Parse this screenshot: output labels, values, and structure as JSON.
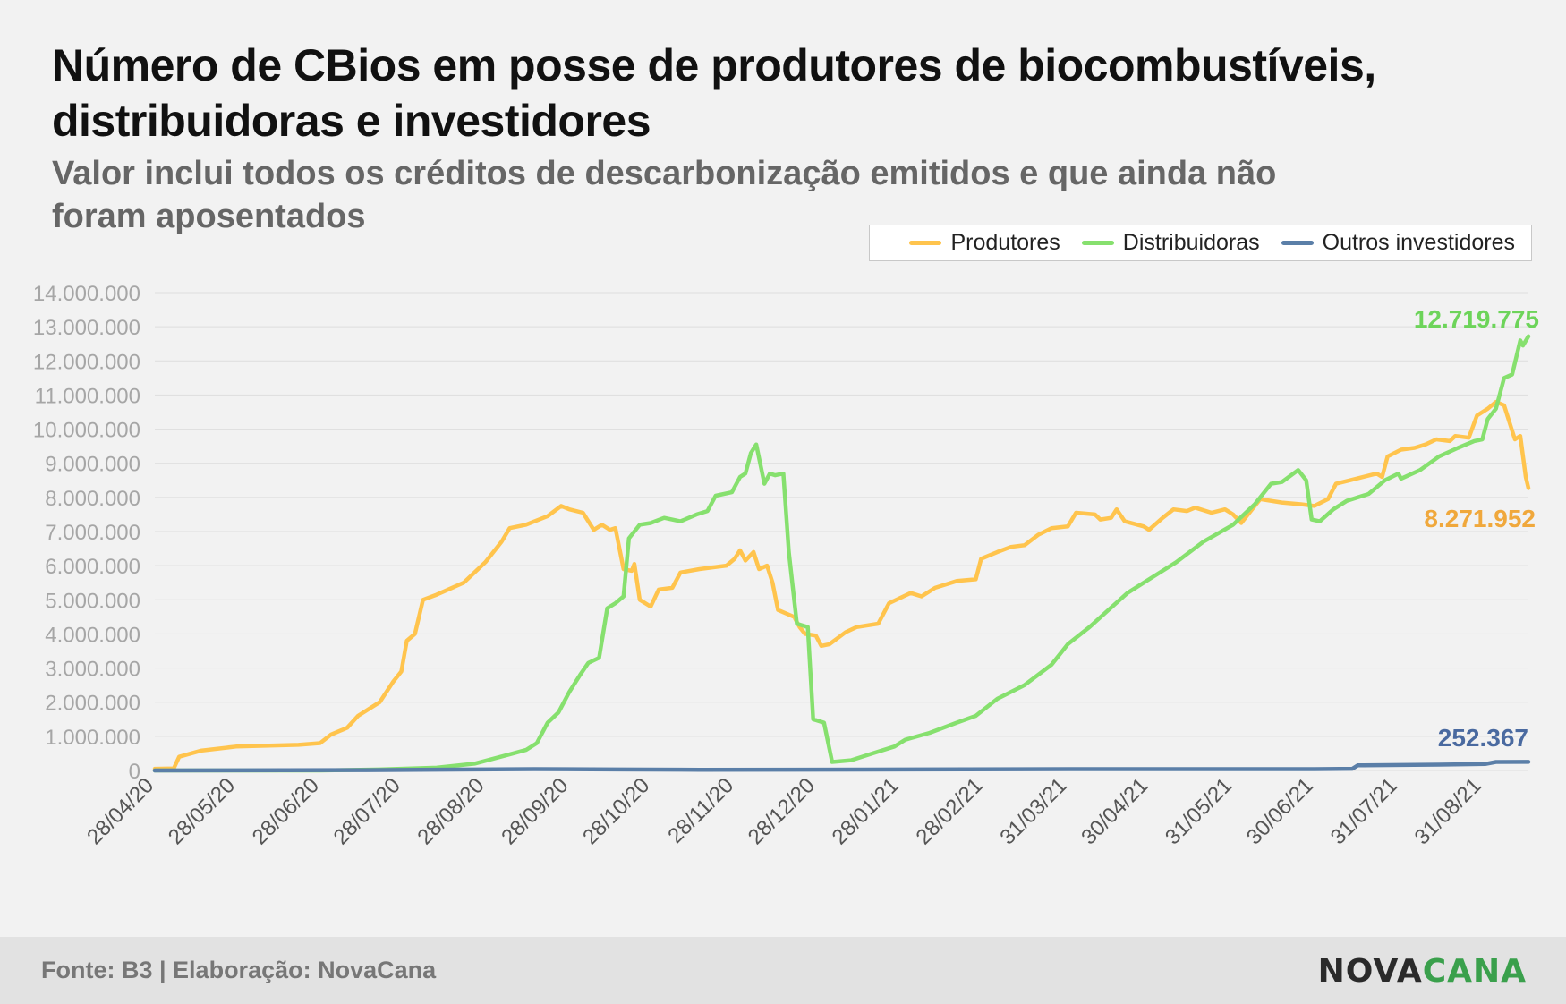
{
  "title": "Número de CBios em posse de produtores de biocombustíveis, distribuidoras e investidores",
  "subtitle": "Valor inclui todos os créditos de descarbonização emitidos e que ainda não foram aposentados",
  "footer": {
    "source": "Fonte: B3 | Elaboração: NovaCana",
    "logo_part1": "NOVA",
    "logo_part2": "CANA"
  },
  "chart_data": {
    "type": "line",
    "ylim": [
      0,
      14000000
    ],
    "y_ticks": [
      0,
      1000000,
      2000000,
      3000000,
      4000000,
      5000000,
      6000000,
      7000000,
      8000000,
      9000000,
      10000000,
      11000000,
      12000000,
      13000000,
      14000000
    ],
    "y_tick_labels": [
      "0",
      "1.000.000",
      "2.000.000",
      "3.000.000",
      "4.000.000",
      "5.000.000",
      "6.000.000",
      "7.000.000",
      "8.000.000",
      "9.000.000",
      "10.000.000",
      "11.000.000",
      "12.000.000",
      "13.000.000",
      "14.000.000"
    ],
    "x_range": [
      "2020-04-28",
      "2021-09-17"
    ],
    "x_ticks": [
      "2020-04-28",
      "2020-05-28",
      "2020-06-28",
      "2020-07-28",
      "2020-08-28",
      "2020-09-28",
      "2020-10-28",
      "2020-11-28",
      "2020-12-28",
      "2021-01-28",
      "2021-02-28",
      "2021-03-31",
      "2021-04-30",
      "2021-05-31",
      "2021-06-30",
      "2021-07-31",
      "2021-08-31"
    ],
    "x_tick_labels": [
      "28/04/20",
      "28/05/20",
      "28/06/20",
      "28/07/20",
      "28/08/20",
      "28/09/20",
      "28/10/20",
      "28/11/20",
      "28/12/20",
      "28/01/21",
      "28/02/21",
      "31/03/21",
      "30/04/21",
      "31/05/21",
      "30/06/21",
      "31/07/21",
      "31/08/21"
    ],
    "grid": true,
    "legend_position": "top-right",
    "series": [
      {
        "name": "Produtores",
        "color": "#ffc44d",
        "end_label": "8.271.952",
        "label_color": "#f0a83c",
        "points": [
          [
            "2020-04-28",
            50000
          ],
          [
            "2020-05-05",
            60000
          ],
          [
            "2020-05-07",
            400000
          ],
          [
            "2020-05-15",
            580000
          ],
          [
            "2020-05-28",
            700000
          ],
          [
            "2020-06-20",
            750000
          ],
          [
            "2020-06-28",
            800000
          ],
          [
            "2020-07-02",
            1050000
          ],
          [
            "2020-07-08",
            1250000
          ],
          [
            "2020-07-12",
            1600000
          ],
          [
            "2020-07-20",
            2000000
          ],
          [
            "2020-07-25",
            2600000
          ],
          [
            "2020-07-28",
            2900000
          ],
          [
            "2020-07-30",
            3800000
          ],
          [
            "2020-08-02",
            4000000
          ],
          [
            "2020-08-05",
            5000000
          ],
          [
            "2020-08-10",
            5150000
          ],
          [
            "2020-08-20",
            5500000
          ],
          [
            "2020-08-28",
            6100000
          ],
          [
            "2020-09-03",
            6700000
          ],
          [
            "2020-09-06",
            7100000
          ],
          [
            "2020-09-12",
            7200000
          ],
          [
            "2020-09-20",
            7450000
          ],
          [
            "2020-09-25",
            7750000
          ],
          [
            "2020-09-28",
            7650000
          ],
          [
            "2020-10-03",
            7550000
          ],
          [
            "2020-10-07",
            7050000
          ],
          [
            "2020-10-10",
            7200000
          ],
          [
            "2020-10-13",
            7050000
          ],
          [
            "2020-10-15",
            7100000
          ],
          [
            "2020-10-18",
            5900000
          ],
          [
            "2020-10-21",
            5850000
          ],
          [
            "2020-10-22",
            6050000
          ],
          [
            "2020-10-24",
            5000000
          ],
          [
            "2020-10-28",
            4800000
          ],
          [
            "2020-10-31",
            5300000
          ],
          [
            "2020-11-05",
            5350000
          ],
          [
            "2020-11-08",
            5800000
          ],
          [
            "2020-11-15",
            5900000
          ],
          [
            "2020-11-25",
            6000000
          ],
          [
            "2020-11-28",
            6200000
          ],
          [
            "2020-11-30",
            6450000
          ],
          [
            "2020-12-02",
            6150000
          ],
          [
            "2020-12-05",
            6400000
          ],
          [
            "2020-12-07",
            5900000
          ],
          [
            "2020-12-10",
            6000000
          ],
          [
            "2020-12-12",
            5500000
          ],
          [
            "2020-12-14",
            4700000
          ],
          [
            "2020-12-20",
            4500000
          ],
          [
            "2020-12-22",
            4200000
          ],
          [
            "2020-12-24",
            4000000
          ],
          [
            "2020-12-28",
            3950000
          ],
          [
            "2020-12-30",
            3650000
          ],
          [
            "2021-01-02",
            3700000
          ],
          [
            "2021-01-08",
            4050000
          ],
          [
            "2021-01-12",
            4200000
          ],
          [
            "2021-01-20",
            4300000
          ],
          [
            "2021-01-24",
            4900000
          ],
          [
            "2021-01-28",
            5050000
          ],
          [
            "2021-02-01",
            5200000
          ],
          [
            "2021-02-05",
            5100000
          ],
          [
            "2021-02-10",
            5350000
          ],
          [
            "2021-02-18",
            5550000
          ],
          [
            "2021-02-25",
            5600000
          ],
          [
            "2021-02-27",
            6200000
          ],
          [
            "2021-03-05",
            6400000
          ],
          [
            "2021-03-10",
            6550000
          ],
          [
            "2021-03-15",
            6600000
          ],
          [
            "2021-03-20",
            6900000
          ],
          [
            "2021-03-25",
            7100000
          ],
          [
            "2021-03-31",
            7150000
          ],
          [
            "2021-04-03",
            7550000
          ],
          [
            "2021-04-10",
            7500000
          ],
          [
            "2021-04-12",
            7350000
          ],
          [
            "2021-04-16",
            7400000
          ],
          [
            "2021-04-18",
            7650000
          ],
          [
            "2021-04-21",
            7300000
          ],
          [
            "2021-04-28",
            7150000
          ],
          [
            "2021-04-30",
            7050000
          ],
          [
            "2021-05-05",
            7400000
          ],
          [
            "2021-05-09",
            7650000
          ],
          [
            "2021-05-14",
            7600000
          ],
          [
            "2021-05-17",
            7700000
          ],
          [
            "2021-05-23",
            7550000
          ],
          [
            "2021-05-28",
            7650000
          ],
          [
            "2021-05-31",
            7500000
          ],
          [
            "2021-06-03",
            7250000
          ],
          [
            "2021-06-06",
            7550000
          ],
          [
            "2021-06-10",
            7950000
          ],
          [
            "2021-06-18",
            7850000
          ],
          [
            "2021-06-25",
            7800000
          ],
          [
            "2021-06-30",
            7750000
          ],
          [
            "2021-07-05",
            7950000
          ],
          [
            "2021-07-08",
            8400000
          ],
          [
            "2021-07-13",
            8500000
          ],
          [
            "2021-07-23",
            8700000
          ],
          [
            "2021-07-25",
            8600000
          ],
          [
            "2021-07-27",
            9200000
          ],
          [
            "2021-08-01",
            9400000
          ],
          [
            "2021-08-06",
            9450000
          ],
          [
            "2021-08-10",
            9550000
          ],
          [
            "2021-08-14",
            9700000
          ],
          [
            "2021-08-19",
            9650000
          ],
          [
            "2021-08-21",
            9800000
          ],
          [
            "2021-08-26",
            9750000
          ],
          [
            "2021-08-29",
            10400000
          ],
          [
            "2021-09-02",
            10600000
          ],
          [
            "2021-09-05",
            10800000
          ],
          [
            "2021-09-08",
            10700000
          ],
          [
            "2021-09-10",
            10200000
          ],
          [
            "2021-09-12",
            9700000
          ],
          [
            "2021-09-14",
            9800000
          ],
          [
            "2021-09-16",
            8600000
          ],
          [
            "2021-09-17",
            8272000
          ]
        ]
      },
      {
        "name": "Distribuidoras",
        "color": "#86e06e",
        "end_label": "12.719.775",
        "label_color": "#6dd45a",
        "points": [
          [
            "2020-04-28",
            0
          ],
          [
            "2020-06-28",
            0
          ],
          [
            "2020-07-20",
            30000
          ],
          [
            "2020-08-10",
            80000
          ],
          [
            "2020-08-24",
            200000
          ],
          [
            "2020-09-05",
            450000
          ],
          [
            "2020-09-12",
            600000
          ],
          [
            "2020-09-16",
            800000
          ],
          [
            "2020-09-20",
            1400000
          ],
          [
            "2020-09-24",
            1700000
          ],
          [
            "2020-09-28",
            2300000
          ],
          [
            "2020-10-02",
            2800000
          ],
          [
            "2020-10-05",
            3150000
          ],
          [
            "2020-10-09",
            3300000
          ],
          [
            "2020-10-12",
            4750000
          ],
          [
            "2020-10-15",
            4900000
          ],
          [
            "2020-10-18",
            5100000
          ],
          [
            "2020-10-20",
            6800000
          ],
          [
            "2020-10-24",
            7200000
          ],
          [
            "2020-10-28",
            7250000
          ],
          [
            "2020-11-02",
            7400000
          ],
          [
            "2020-11-08",
            7300000
          ],
          [
            "2020-11-14",
            7500000
          ],
          [
            "2020-11-18",
            7600000
          ],
          [
            "2020-11-21",
            8050000
          ],
          [
            "2020-11-27",
            8150000
          ],
          [
            "2020-11-30",
            8600000
          ],
          [
            "2020-12-02",
            8700000
          ],
          [
            "2020-12-04",
            9300000
          ],
          [
            "2020-12-06",
            9550000
          ],
          [
            "2020-12-09",
            8400000
          ],
          [
            "2020-12-11",
            8700000
          ],
          [
            "2020-12-13",
            8650000
          ],
          [
            "2020-12-16",
            8700000
          ],
          [
            "2020-12-18",
            6400000
          ],
          [
            "2020-12-21",
            4300000
          ],
          [
            "2020-12-25",
            4200000
          ],
          [
            "2020-12-27",
            1500000
          ],
          [
            "2020-12-31",
            1400000
          ],
          [
            "2021-01-03",
            250000
          ],
          [
            "2021-01-10",
            300000
          ],
          [
            "2021-01-18",
            500000
          ],
          [
            "2021-01-26",
            700000
          ],
          [
            "2021-01-30",
            900000
          ],
          [
            "2021-02-08",
            1100000
          ],
          [
            "2021-02-18",
            1400000
          ],
          [
            "2021-02-25",
            1600000
          ],
          [
            "2021-03-05",
            2100000
          ],
          [
            "2021-03-15",
            2500000
          ],
          [
            "2021-03-25",
            3100000
          ],
          [
            "2021-03-31",
            3700000
          ],
          [
            "2021-04-08",
            4200000
          ],
          [
            "2021-04-15",
            4700000
          ],
          [
            "2021-04-22",
            5200000
          ],
          [
            "2021-04-30",
            5600000
          ],
          [
            "2021-05-10",
            6100000
          ],
          [
            "2021-05-20",
            6700000
          ],
          [
            "2021-05-31",
            7200000
          ],
          [
            "2021-06-08",
            7800000
          ],
          [
            "2021-06-14",
            8400000
          ],
          [
            "2021-06-18",
            8450000
          ],
          [
            "2021-06-24",
            8800000
          ],
          [
            "2021-06-27",
            8500000
          ],
          [
            "2021-06-29",
            7350000
          ],
          [
            "2021-07-02",
            7300000
          ],
          [
            "2021-07-07",
            7650000
          ],
          [
            "2021-07-12",
            7900000
          ],
          [
            "2021-07-20",
            8100000
          ],
          [
            "2021-07-26",
            8500000
          ],
          [
            "2021-07-31",
            8700000
          ],
          [
            "2021-08-01",
            8550000
          ],
          [
            "2021-08-08",
            8800000
          ],
          [
            "2021-08-15",
            9200000
          ],
          [
            "2021-08-22",
            9450000
          ],
          [
            "2021-08-28",
            9650000
          ],
          [
            "2021-08-31",
            9700000
          ],
          [
            "2021-09-02",
            10300000
          ],
          [
            "2021-09-05",
            10600000
          ],
          [
            "2021-09-08",
            11500000
          ],
          [
            "2021-09-11",
            11600000
          ],
          [
            "2021-09-14",
            12600000
          ],
          [
            "2021-09-15",
            12450000
          ],
          [
            "2021-09-17",
            12720000
          ]
        ]
      },
      {
        "name": "Outros investidores",
        "color": "#5b7fa8",
        "end_label": "252.367",
        "label_color": "#4a6aa0",
        "points": [
          [
            "2020-04-28",
            0
          ],
          [
            "2020-07-15",
            10000
          ],
          [
            "2020-09-15",
            40000
          ],
          [
            "2020-10-15",
            30000
          ],
          [
            "2020-11-15",
            20000
          ],
          [
            "2021-01-15",
            25000
          ],
          [
            "2021-04-01",
            40000
          ],
          [
            "2021-06-30",
            40000
          ],
          [
            "2021-07-14",
            50000
          ],
          [
            "2021-07-16",
            150000
          ],
          [
            "2021-08-15",
            170000
          ],
          [
            "2021-09-01",
            190000
          ],
          [
            "2021-09-05",
            250000
          ],
          [
            "2021-09-17",
            252367
          ]
        ]
      }
    ]
  }
}
